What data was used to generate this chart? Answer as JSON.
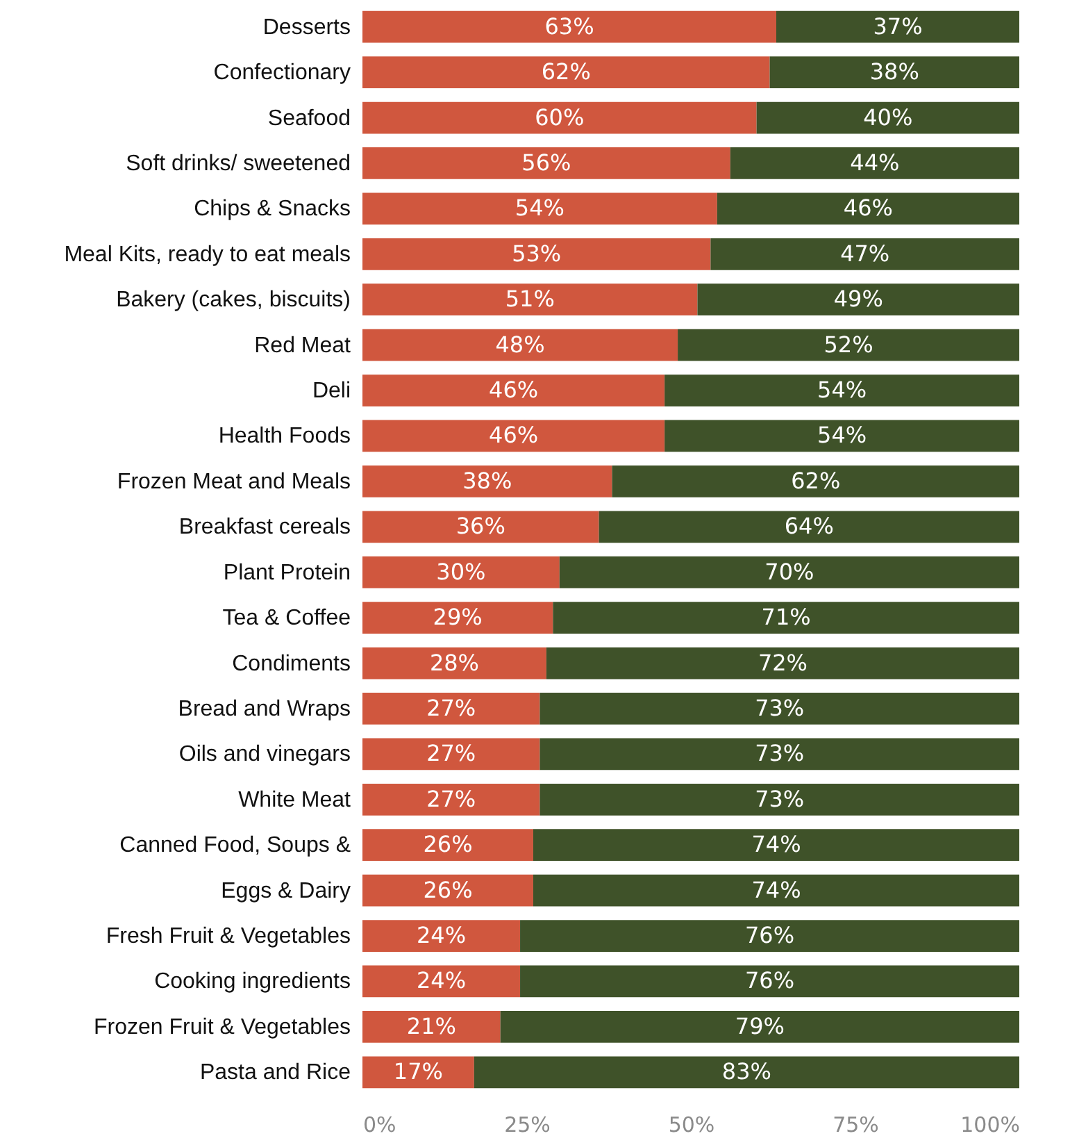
{
  "chart_data": {
    "type": "bar",
    "orientation": "horizontal",
    "stacked": true,
    "categories": [
      "Desserts",
      "Confectionary",
      "Seafood",
      "Soft drinks/ sweetened",
      "Chips & Snacks",
      "Meal Kits, ready to eat meals",
      "Bakery (cakes, biscuits)",
      "Red Meat",
      "Deli",
      "Health Foods",
      "Frozen Meat and Meals",
      "Breakfast cereals",
      "Plant Protein",
      "Tea & Coffee",
      "Condiments",
      "Bread and Wraps",
      "Oils and vinegars",
      "White Meat",
      "Canned Food, Soups &",
      "Eggs & Dairy",
      "Fresh Fruit & Vegetables",
      "Cooking ingredients",
      "Frozen Fruit & Vegetables",
      "Pasta and Rice"
    ],
    "series": [
      {
        "color": "#d0573e",
        "values": [
          63,
          62,
          60,
          56,
          54,
          53,
          51,
          48,
          46,
          46,
          38,
          36,
          30,
          29,
          28,
          27,
          27,
          27,
          26,
          26,
          24,
          24,
          21,
          17
        ],
        "value_labels": [
          "63%",
          "62%",
          "60%",
          "56%",
          "54%",
          "53%",
          "51%",
          "48%",
          "46%",
          "46%",
          "38%",
          "36%",
          "30%",
          "29%",
          "28%",
          "27%",
          "27%",
          "27%",
          "26%",
          "26%",
          "24%",
          "24%",
          "21%",
          "17%"
        ]
      },
      {
        "color": "#3f5229",
        "values": [
          37,
          38,
          40,
          44,
          46,
          47,
          49,
          52,
          54,
          54,
          62,
          64,
          70,
          71,
          72,
          73,
          73,
          73,
          74,
          74,
          76,
          76,
          79,
          83
        ],
        "value_labels": [
          "37%",
          "38%",
          "40%",
          "44%",
          "46%",
          "47%",
          "49%",
          "52%",
          "54%",
          "54%",
          "62%",
          "64%",
          "70%",
          "71%",
          "72%",
          "73%",
          "73%",
          "73%",
          "74%",
          "74%",
          "76%",
          "76%",
          "79%",
          "83%"
        ]
      }
    ],
    "xlim": [
      0,
      100
    ],
    "xticks": [
      {
        "value": 0,
        "label": "0%"
      },
      {
        "value": 25,
        "label": "25%"
      },
      {
        "value": 50,
        "label": "50%"
      },
      {
        "value": 75,
        "label": "75%"
      },
      {
        "value": 100,
        "label": "100%"
      }
    ],
    "grid": false,
    "legend": false
  }
}
